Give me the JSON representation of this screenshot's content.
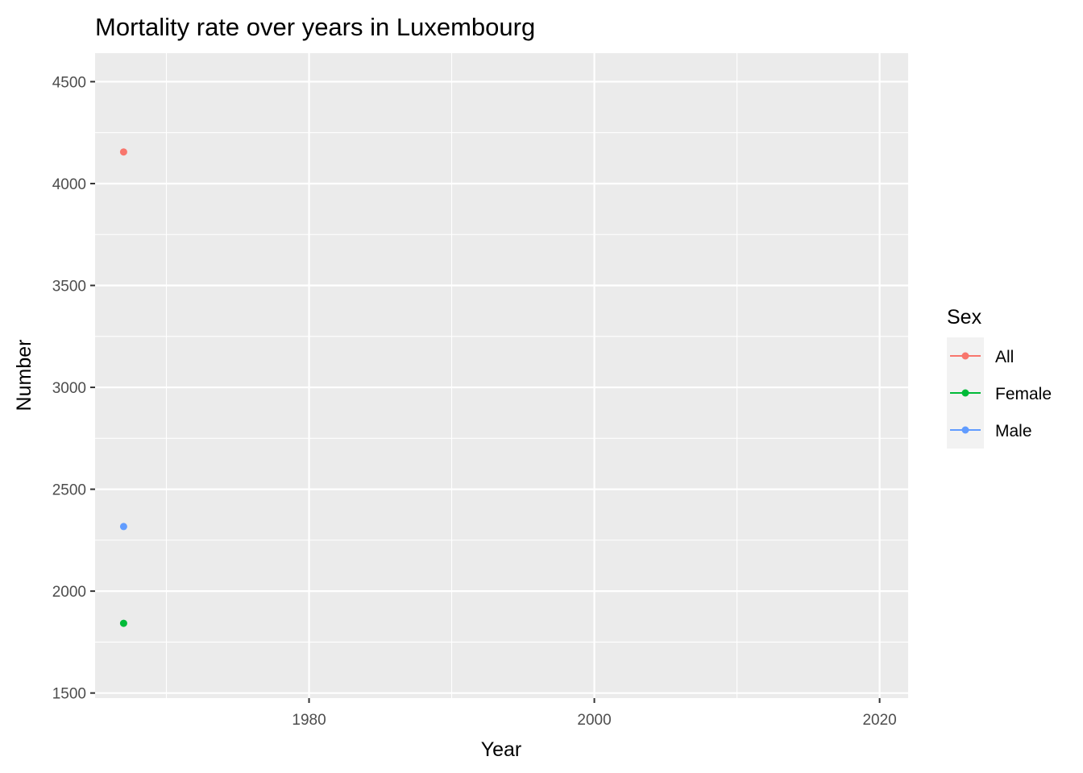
{
  "chart_data": {
    "type": "scatter",
    "title": "Mortality rate over years in Luxembourg",
    "xlabel": "Year",
    "ylabel": "Number",
    "xlim": [
      1965,
      2022
    ],
    "ylim": [
      1475,
      4640
    ],
    "xticks": [
      1980,
      2000,
      2020
    ],
    "xticks_minor": [
      1970,
      1990,
      2010
    ],
    "yticks": [
      1500,
      2000,
      2500,
      3000,
      3500,
      4000,
      4500
    ],
    "grid": true,
    "legend": {
      "title": "Sex",
      "position": "right",
      "entries": [
        "All",
        "Female",
        "Male"
      ]
    },
    "series": [
      {
        "name": "All",
        "color": "#F8766D",
        "points": [
          {
            "x": 1967,
            "y": 4155
          }
        ]
      },
      {
        "name": "Female",
        "color": "#00BA38",
        "points": [
          {
            "x": 1967,
            "y": 1842
          }
        ]
      },
      {
        "name": "Male",
        "color": "#619CFF",
        "points": [
          {
            "x": 1967,
            "y": 2317
          }
        ]
      }
    ]
  }
}
